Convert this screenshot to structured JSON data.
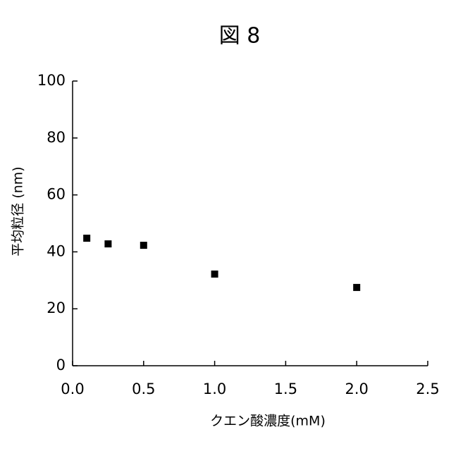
{
  "chart_data": {
    "type": "scatter",
    "title": "図 8",
    "x_label": "クエン酸濃度(mM)",
    "y_label": "平均粒径 (nm)",
    "x": [
      0.1,
      0.25,
      0.5,
      1.0,
      2.0
    ],
    "values": [
      44.8,
      42.8,
      42.3,
      32.2,
      27.5
    ],
    "color": "#000000",
    "xlim": [
      0,
      2.5
    ],
    "xticks": [
      {
        "value": 0,
        "label": "0.0"
      },
      {
        "value": 0.5,
        "label": "0.5"
      },
      {
        "value": 1,
        "label": "1.0"
      },
      {
        "value": 1.5,
        "label": "1.5"
      },
      {
        "value": 2,
        "label": "2.0"
      },
      {
        "value": 2.5,
        "label": "2.5"
      }
    ],
    "ylim": [
      0,
      100
    ],
    "yticks": [
      0,
      20,
      40,
      60,
      80,
      100
    ],
    "grid": false
  }
}
